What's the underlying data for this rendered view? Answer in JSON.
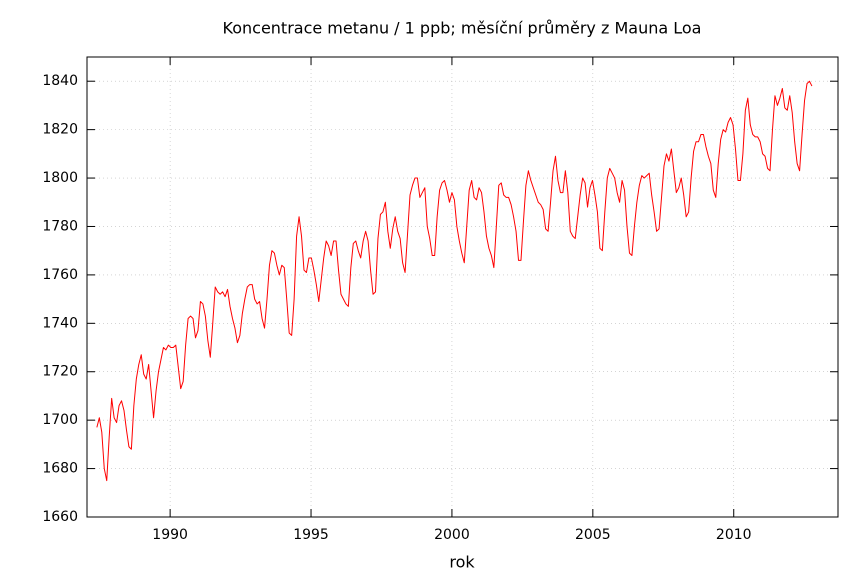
{
  "chart_data": {
    "type": "line",
    "title": "Koncentrace metanu / 1 ppb; měsíční průměry z Mauna Loa",
    "xlabel": "rok",
    "color": "#ff0000",
    "grid": true,
    "xlim": [
      1987.05,
      2013.7
    ],
    "xticks": [
      1990,
      1995,
      2000,
      2005,
      2010
    ],
    "ylim": [
      1660,
      1850
    ],
    "yticks": [
      1660,
      1680,
      1700,
      1720,
      1740,
      1760,
      1780,
      1800,
      1820,
      1840
    ],
    "x": [
      1987.4,
      1987.4875,
      1987.575,
      1987.6625,
      1987.75,
      1987.8375,
      1987.925,
      1988.0125,
      1988.1,
      1988.1875,
      1988.275,
      1988.3625,
      1988.45,
      1988.5375,
      1988.625,
      1988.7125,
      1988.8,
      1988.8875,
      1988.975,
      1989.0625,
      1989.15,
      1989.2375,
      1989.325,
      1989.4125,
      1989.5,
      1989.5875,
      1989.675,
      1989.7625,
      1989.85,
      1989.9375,
      1990.025,
      1990.1125,
      1990.2,
      1990.2875,
      1990.375,
      1990.4625,
      1990.55,
      1990.6375,
      1990.725,
      1990.8125,
      1990.9,
      1990.9875,
      1991.075,
      1991.1625,
      1991.25,
      1991.3375,
      1991.425,
      1991.5125,
      1991.6,
      1991.6875,
      1991.775,
      1991.8625,
      1991.95,
      1992.0375,
      1992.125,
      1992.2125,
      1992.3,
      1992.3875,
      1992.475,
      1992.5625,
      1992.65,
      1992.7375,
      1992.825,
      1992.9125,
      1993.0,
      1993.0875,
      1993.175,
      1993.2625,
      1993.35,
      1993.4375,
      1993.525,
      1993.6125,
      1993.7,
      1993.7875,
      1993.875,
      1993.9625,
      1994.05,
      1994.1375,
      1994.225,
      1994.3125,
      1994.4,
      1994.4875,
      1994.575,
      1994.6625,
      1994.75,
      1994.8375,
      1994.925,
      1995.0125,
      1995.1,
      1995.1875,
      1995.275,
      1995.3625,
      1995.45,
      1995.5375,
      1995.625,
      1995.7125,
      1995.8,
      1995.8875,
      1995.975,
      1996.0625,
      1996.15,
      1996.2375,
      1996.325,
      1996.4125,
      1996.5,
      1996.5875,
      1996.675,
      1996.7625,
      1996.85,
      1996.9375,
      1997.025,
      1997.1125,
      1997.2,
      1997.2875,
      1997.375,
      1997.4625,
      1997.55,
      1997.6375,
      1997.725,
      1997.8125,
      1997.9,
      1997.9875,
      1998.075,
      1998.1625,
      1998.25,
      1998.3375,
      1998.425,
      1998.5125,
      1998.6,
      1998.6875,
      1998.775,
      1998.8625,
      1998.95,
      1999.0375,
      1999.125,
      1999.2125,
      1999.3,
      1999.3875,
      1999.475,
      1999.5625,
      1999.65,
      1999.7375,
      1999.825,
      1999.9125,
      2000.0,
      2000.0875,
      2000.175,
      2000.2625,
      2000.35,
      2000.4375,
      2000.525,
      2000.6125,
      2000.7,
      2000.7875,
      2000.875,
      2000.9625,
      2001.05,
      2001.1375,
      2001.225,
      2001.3125,
      2001.4,
      2001.4875,
      2001.575,
      2001.6625,
      2001.75,
      2001.8375,
      2001.925,
      2002.0125,
      2002.1,
      2002.1875,
      2002.275,
      2002.3625,
      2002.45,
      2002.5375,
      2002.625,
      2002.7125,
      2002.8,
      2002.8875,
      2002.975,
      2003.0625,
      2003.15,
      2003.2375,
      2003.325,
      2003.4125,
      2003.5,
      2003.5875,
      2003.675,
      2003.7625,
      2003.85,
      2003.9375,
      2004.025,
      2004.1125,
      2004.2,
      2004.2875,
      2004.375,
      2004.4625,
      2004.55,
      2004.6375,
      2004.725,
      2004.8125,
      2004.9,
      2004.9875,
      2005.075,
      2005.1625,
      2005.25,
      2005.3375,
      2005.425,
      2005.5125,
      2005.6,
      2005.6875,
      2005.775,
      2005.8625,
      2005.95,
      2006.0375,
      2006.125,
      2006.2125,
      2006.3,
      2006.3875,
      2006.475,
      2006.5625,
      2006.65,
      2006.7375,
      2006.825,
      2006.9125,
      2007.0,
      2007.0875,
      2007.175,
      2007.2625,
      2007.35,
      2007.4375,
      2007.525,
      2007.6125,
      2007.7,
      2007.7875,
      2007.875,
      2007.9625,
      2008.05,
      2008.1375,
      2008.225,
      2008.3125,
      2008.4,
      2008.4875,
      2008.575,
      2008.6625,
      2008.75,
      2008.8375,
      2008.925,
      2009.0125,
      2009.1,
      2009.1875,
      2009.275,
      2009.3625,
      2009.45,
      2009.5375,
      2009.625,
      2009.7125,
      2009.8,
      2009.8875,
      2009.975,
      2010.0625,
      2010.15,
      2010.2375,
      2010.325,
      2010.4125,
      2010.5,
      2010.5875,
      2010.675,
      2010.7625,
      2010.85,
      2010.9375,
      2011.025,
      2011.1125,
      2011.2,
      2011.2875,
      2011.375,
      2011.4625,
      2011.55,
      2011.6375,
      2011.725,
      2011.8125,
      2011.9,
      2011.9875,
      2012.075,
      2012.1625,
      2012.25,
      2012.3375,
      2012.425,
      2012.5125,
      2012.6,
      2012.6875,
      2012.775
    ],
    "values": [
      1697,
      1701,
      1695,
      1680,
      1675,
      1693,
      1709,
      1701,
      1699,
      1706,
      1708,
      1704,
      1696,
      1689,
      1688,
      1706,
      1717,
      1723,
      1727,
      1719,
      1717,
      1723,
      1712,
      1701,
      1712,
      1720,
      1725,
      1730,
      1729,
      1731,
      1730,
      1730,
      1731,
      1722,
      1713,
      1716,
      1731,
      1742,
      1743,
      1742,
      1734,
      1737,
      1749,
      1748,
      1743,
      1733,
      1726,
      1740,
      1755,
      1753,
      1752,
      1753,
      1751,
      1754,
      1747,
      1742,
      1738,
      1732,
      1735,
      1744,
      1750,
      1755,
      1756,
      1756,
      1750,
      1748,
      1749,
      1742,
      1738,
      1750,
      1764,
      1770,
      1769,
      1764,
      1760,
      1764,
      1763,
      1750,
      1736,
      1735,
      1750,
      1776,
      1784,
      1776,
      1762,
      1761,
      1767,
      1767,
      1762,
      1756,
      1749,
      1758,
      1767,
      1774,
      1772,
      1768,
      1774,
      1774,
      1762,
      1752,
      1750,
      1748,
      1747,
      1763,
      1773,
      1774,
      1770,
      1767,
      1774,
      1778,
      1774,
      1762,
      1752,
      1753,
      1775,
      1785,
      1786,
      1790,
      1778,
      1771,
      1779,
      1784,
      1778,
      1775,
      1765,
      1761,
      1777,
      1793,
      1797,
      1800,
      1800,
      1792,
      1794,
      1796,
      1780,
      1775,
      1768,
      1768,
      1784,
      1795,
      1798,
      1799,
      1795,
      1790,
      1794,
      1791,
      1780,
      1774,
      1769,
      1765,
      1780,
      1795,
      1799,
      1792,
      1791,
      1796,
      1794,
      1786,
      1776,
      1771,
      1768,
      1763,
      1780,
      1797,
      1798,
      1793,
      1792,
      1792,
      1789,
      1784,
      1778,
      1766,
      1766,
      1782,
      1797,
      1803,
      1799,
      1796,
      1793,
      1790,
      1789,
      1787,
      1779,
      1778,
      1790,
      1803,
      1809,
      1799,
      1794,
      1794,
      1803,
      1794,
      1778,
      1776,
      1775,
      1784,
      1793,
      1800,
      1798,
      1788,
      1796,
      1799,
      1793,
      1786,
      1771,
      1770,
      1786,
      1800,
      1804,
      1802,
      1800,
      1794,
      1790,
      1799,
      1795,
      1780,
      1769,
      1768,
      1780,
      1790,
      1797,
      1801,
      1800,
      1801,
      1802,
      1793,
      1786,
      1778,
      1779,
      1792,
      1805,
      1810,
      1807,
      1812,
      1803,
      1794,
      1796,
      1800,
      1793,
      1784,
      1786,
      1800,
      1811,
      1815,
      1815,
      1818,
      1818,
      1813,
      1809,
      1806,
      1795,
      1792,
      1806,
      1816,
      1820,
      1819,
      1823,
      1825,
      1822,
      1812,
      1799,
      1799,
      1810,
      1828,
      1833,
      1822,
      1818,
      1817,
      1817,
      1815,
      1810,
      1809,
      1804,
      1803,
      1820,
      1834,
      1830,
      1833,
      1837,
      1829,
      1828,
      1834,
      1827,
      1815,
      1806,
      1803,
      1818,
      1832,
      1839,
      1840,
      1838
    ]
  }
}
